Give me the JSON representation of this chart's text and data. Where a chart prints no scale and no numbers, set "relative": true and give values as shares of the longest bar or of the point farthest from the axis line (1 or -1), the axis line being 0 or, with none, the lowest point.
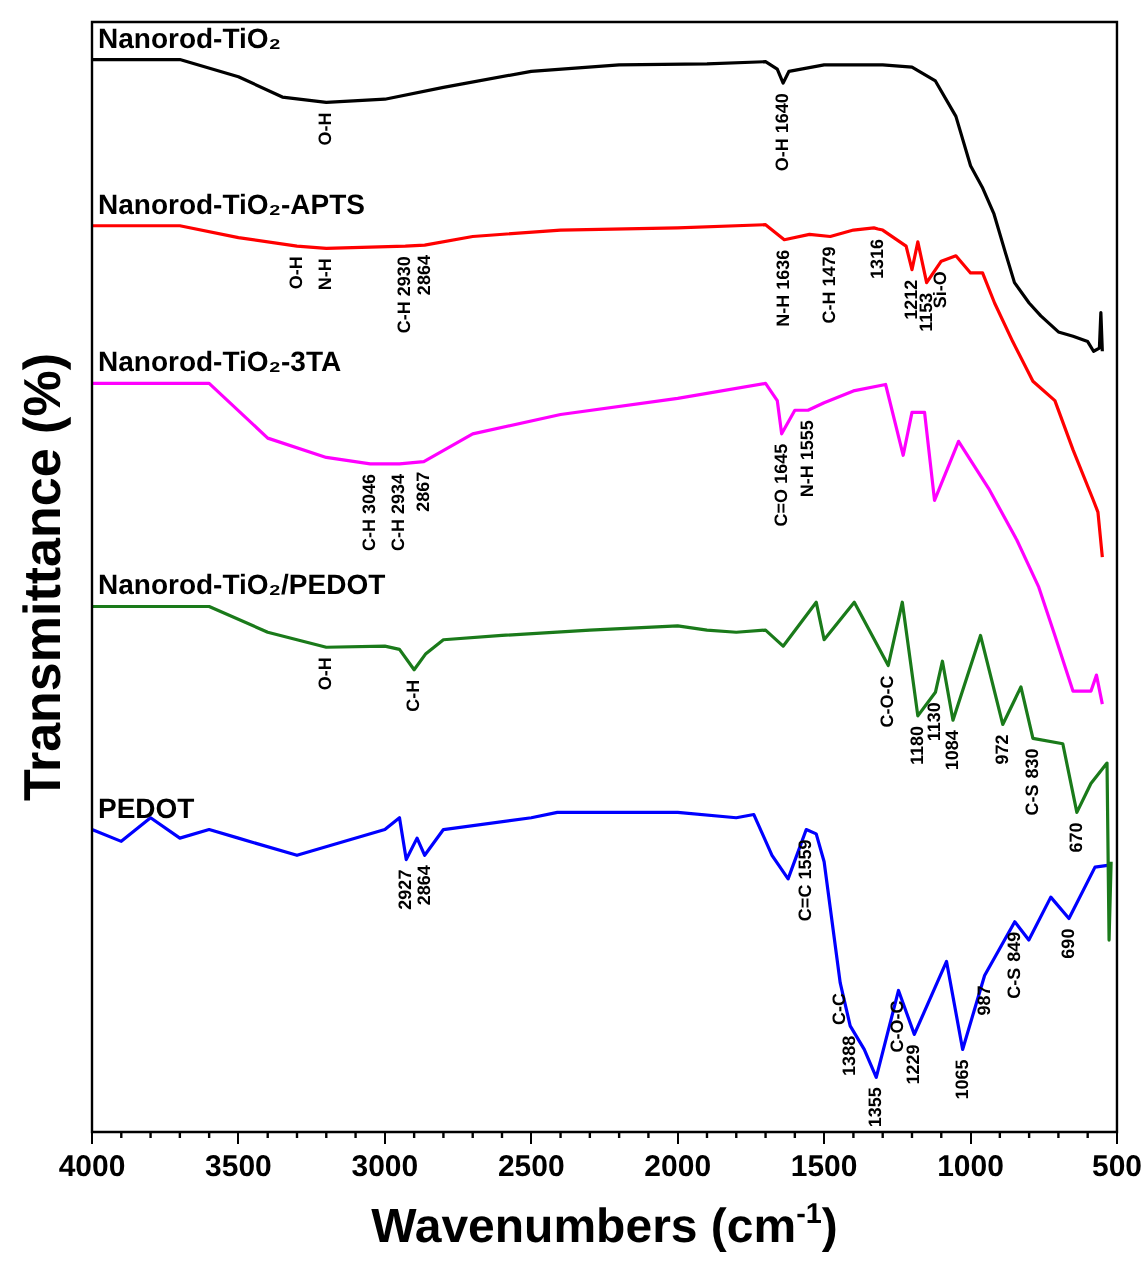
{
  "chart_data": {
    "type": "line",
    "relative": true,
    "xlabel": "Wavenumbers (cm$^{-1}$)",
    "ylabel": "Transmittance (%)",
    "xlim": [
      4000,
      500
    ],
    "xticks": [
      4000,
      3500,
      3000,
      2500,
      2000,
      1500,
      1000,
      500
    ],
    "grid": false,
    "legend": false,
    "marker": "none",
    "line_style": "solid",
    "series": [
      {
        "name": "Nanorod-TiO₂",
        "color": "#000000",
        "x": [
          4000,
          3700,
          3500,
          3350,
          3200,
          3000,
          2800,
          2500,
          2200,
          1900,
          1700,
          1660,
          1640,
          1620,
          1500,
          1300,
          1200,
          1120,
          1050,
          1000,
          960,
          920,
          880,
          850,
          800,
          760,
          700,
          650,
          600,
          580,
          560,
          555,
          550
        ],
        "values": [
          1.0,
          1.0,
          0.984,
          0.965,
          0.96,
          0.963,
          0.974,
          0.989,
          0.995,
          0.996,
          0.998,
          0.991,
          0.978,
          0.989,
          0.995,
          0.995,
          0.993,
          0.98,
          0.947,
          0.901,
          0.881,
          0.856,
          0.819,
          0.792,
          0.773,
          0.761,
          0.746,
          0.742,
          0.737,
          0.728,
          0.731,
          0.764,
          0.728
        ]
      },
      {
        "name": "Nanorod-TiO₂-APTS",
        "color": "#ff0000",
        "x": [
          4000,
          3700,
          3500,
          3300,
          3200,
          2930,
          2864,
          2700,
          2400,
          2000,
          1700,
          1636,
          1550,
          1479,
          1400,
          1330,
          1316,
          1300,
          1220,
          1200,
          1180,
          1150,
          1100,
          1050,
          1000,
          959,
          918,
          856,
          787,
          712,
          650,
          582,
          565,
          550
        ],
        "values": [
          0.845,
          0.845,
          0.834,
          0.826,
          0.824,
          0.826,
          0.827,
          0.835,
          0.841,
          0.843,
          0.846,
          0.832,
          0.837,
          0.835,
          0.841,
          0.843,
          0.842,
          0.841,
          0.826,
          0.804,
          0.83,
          0.792,
          0.812,
          0.817,
          0.801,
          0.801,
          0.773,
          0.737,
          0.7,
          0.682,
          0.636,
          0.59,
          0.578,
          0.536
        ]
      },
      {
        "name": "Nanorod-TiO₂-3TA",
        "color": "#ff00ff",
        "x": [
          4000,
          3600,
          3400,
          3200,
          3050,
          2950,
          2867,
          2700,
          2400,
          2000,
          1700,
          1660,
          1645,
          1600,
          1555,
          1500,
          1400,
          1290,
          1260,
          1230,
          1200,
          1180,
          1157,
          1123,
          1041,
          938,
          842,
          767,
          712,
          650,
          589,
          570,
          550
        ],
        "values": [
          0.698,
          0.698,
          0.647,
          0.629,
          0.623,
          0.623,
          0.625,
          0.651,
          0.669,
          0.684,
          0.698,
          0.682,
          0.651,
          0.673,
          0.673,
          0.68,
          0.691,
          0.697,
          0.664,
          0.631,
          0.671,
          0.671,
          0.671,
          0.589,
          0.644,
          0.6,
          0.552,
          0.508,
          0.463,
          0.411,
          0.411,
          0.426,
          0.399
        ]
      },
      {
        "name": "Nanorod-TiO₂/PEDOT",
        "color": "#1a7a1a",
        "x": [
          4000,
          3600,
          3400,
          3200,
          3000,
          2950,
          2900,
          2860,
          2800,
          2600,
          2300,
          2000,
          1900,
          1800,
          1700,
          1640,
          1527,
          1500,
          1397,
          1281,
          1233,
          1180,
          1120,
          1096,
          1060,
          966,
          890,
          828,
          787,
          685,
          637,
          589,
          534,
          527,
          520
        ],
        "values": [
          0.49,
          0.49,
          0.466,
          0.452,
          0.453,
          0.45,
          0.431,
          0.446,
          0.459,
          0.463,
          0.468,
          0.472,
          0.468,
          0.466,
          0.468,
          0.453,
          0.494,
          0.459,
          0.494,
          0.435,
          0.494,
          0.388,
          0.41,
          0.439,
          0.384,
          0.463,
          0.38,
          0.415,
          0.367,
          0.362,
          0.298,
          0.325,
          0.344,
          0.179,
          0.252
        ]
      },
      {
        "name": "PEDOT",
        "color": "#0000ff",
        "x": [
          4000,
          3900,
          3800,
          3700,
          3600,
          3500,
          3300,
          3000,
          2950,
          2927,
          2890,
          2864,
          2800,
          2500,
          2411,
          2000,
          1800,
          1740,
          1678,
          1623,
          1561,
          1527,
          1500,
          1445,
          1411,
          1363,
          1322,
          1246,
          1192,
          1082,
          1027,
          952,
          849,
          801,
          726,
          664,
          575,
          520
        ],
        "values": [
          0.282,
          0.271,
          0.293,
          0.274,
          0.282,
          0.274,
          0.258,
          0.282,
          0.293,
          0.254,
          0.274,
          0.258,
          0.282,
          0.293,
          0.298,
          0.298,
          0.293,
          0.296,
          0.258,
          0.236,
          0.282,
          0.278,
          0.252,
          0.139,
          0.099,
          0.077,
          0.051,
          0.132,
          0.091,
          0.159,
          0.077,
          0.146,
          0.196,
          0.179,
          0.219,
          0.199,
          0.247,
          0.249
        ]
      }
    ],
    "annotations": [
      {
        "text": "O-H",
        "x": 3200,
        "y": 0.96
      },
      {
        "text": "O-H 1640",
        "x": 1640,
        "y": 0.978
      },
      {
        "text": "O-H",
        "x": 3300,
        "y": 0.826
      },
      {
        "text": "N-H",
        "x": 3200,
        "y": 0.824
      },
      {
        "text": "C-H 2930",
        "x": 2930,
        "y": 0.826
      },
      {
        "text": "2864",
        "x": 2864,
        "y": 0.827
      },
      {
        "text": "N-H 1636",
        "x": 1636,
        "y": 0.832
      },
      {
        "text": "C-H 1479",
        "x": 1479,
        "y": 0.835
      },
      {
        "text": "1316",
        "x": 1316,
        "y": 0.842
      },
      {
        "text": "1212",
        "x": 1200,
        "y": 0.804
      },
      {
        "text": "1153",
        "x": 1150,
        "y": 0.792
      },
      {
        "text": "Si-O",
        "x": 1100,
        "y": 0.812
      },
      {
        "text": "C-H 3046",
        "x": 3050,
        "y": 0.623
      },
      {
        "text": "C-H 2934",
        "x": 2950,
        "y": 0.623
      },
      {
        "text": "2867",
        "x": 2867,
        "y": 0.625
      },
      {
        "text": "C=O 1645",
        "x": 1645,
        "y": 0.651
      },
      {
        "text": "N-H 1555",
        "x": 1555,
        "y": 0.673
      },
      {
        "text": "O-H",
        "x": 3200,
        "y": 0.452
      },
      {
        "text": "C-H",
        "x": 2900,
        "y": 0.431
      },
      {
        "text": "1180",
        "x": 1180,
        "y": 0.388
      },
      {
        "text": "1130",
        "x": 1120,
        "y": 0.41
      },
      {
        "text": "1084",
        "x": 1060,
        "y": 0.384
      },
      {
        "text": "C-O-C",
        "x": 1281,
        "y": 0.435
      },
      {
        "text": "972",
        "x": 890,
        "y": 0.38
      },
      {
        "text": "830",
        "x": 787,
        "y": 0.367
      },
      {
        "text": "C-S",
        "x": 787,
        "y": 0.367
      },
      {
        "text": "670",
        "x": 637,
        "y": 0.298
      },
      {
        "text": "2927",
        "x": 2927,
        "y": 0.254
      },
      {
        "text": "2864",
        "x": 2864,
        "y": 0.258
      },
      {
        "text": "C=C 1559",
        "x": 1561,
        "y": 0.282
      },
      {
        "text": "C-C",
        "x": 1445,
        "y": 0.139
      },
      {
        "text": "1388",
        "x": 1411,
        "y": 0.099
      },
      {
        "text": "1355",
        "x": 1322,
        "y": 0.051
      },
      {
        "text": "1229",
        "x": 1192,
        "y": 0.091
      },
      {
        "text": "C-O-C",
        "x": 1246,
        "y": 0.132
      },
      {
        "text": "1065",
        "x": 1027,
        "y": 0.077
      },
      {
        "text": "987",
        "x": 952,
        "y": 0.146
      },
      {
        "text": "849",
        "x": 849,
        "y": 0.196
      },
      {
        "text": "C-S",
        "x": 849,
        "y": 0.196
      },
      {
        "text": "690",
        "x": 664,
        "y": 0.199
      }
    ]
  }
}
